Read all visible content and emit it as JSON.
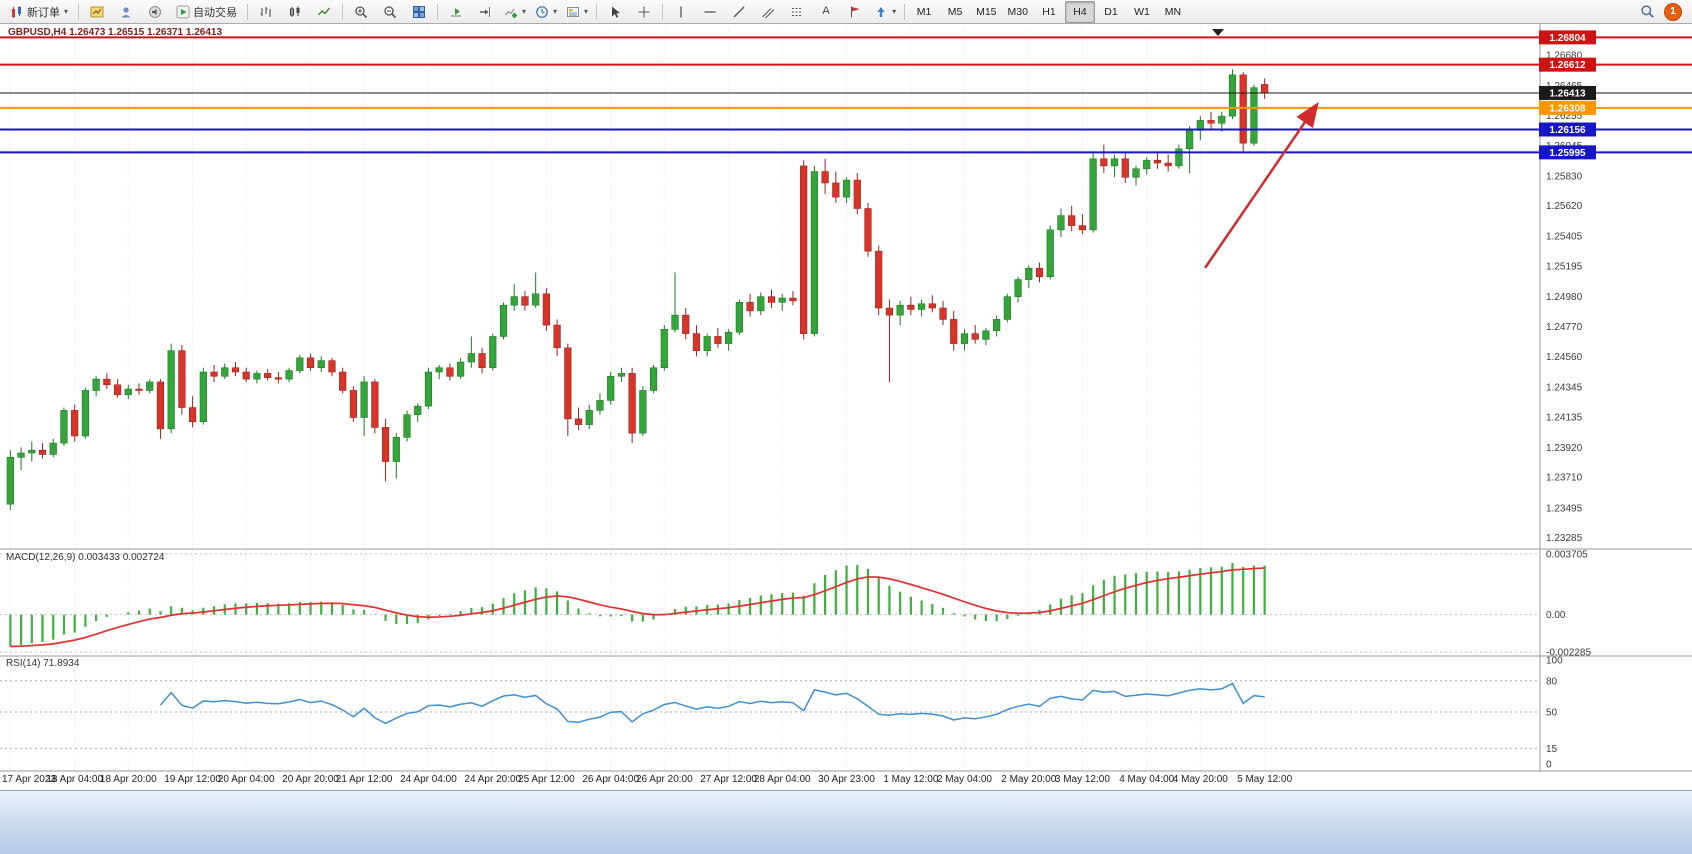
{
  "toolbar": {
    "new_order": "新订单",
    "auto_trading": "自动交易",
    "timeframes": [
      "M1",
      "M5",
      "M15",
      "M30",
      "H1",
      "H4",
      "D1",
      "W1",
      "MN"
    ],
    "active_timeframe": "H4",
    "notification_count": "1",
    "text_tool": "A"
  },
  "chart": {
    "title": "GBPUSD,H4 1.26473 1.26515 1.26371 1.26413",
    "symbol": "GBPUSD",
    "timeframe": "H4",
    "price_axis_labels": [
      "1.26680",
      "1.26465",
      "1.26255",
      "1.26045",
      "1.25830",
      "1.25620",
      "1.25405",
      "1.25195",
      "1.24980",
      "1.24770",
      "1.24560",
      "1.24345",
      "1.24135",
      "1.23920",
      "1.23710",
      "1.23495",
      "1.23285"
    ],
    "hlines": [
      {
        "value": 1.26804,
        "label": "1.26804",
        "color": "#cc1414",
        "width": 2
      },
      {
        "value": 1.26612,
        "label": "1.26612",
        "color": "#cc1414",
        "width": 2
      },
      {
        "value": 1.26413,
        "label": "1.26413",
        "color": "#1a1a1a",
        "width": 1
      },
      {
        "value": 1.26308,
        "label": "1.26308",
        "color": "#ff9500",
        "width": 2
      },
      {
        "value": 1.26156,
        "label": "1.26156",
        "color": "#1616c8",
        "width": 2
      },
      {
        "value": 1.25995,
        "label": "1.25995",
        "color": "#1616c8",
        "width": 2
      }
    ]
  },
  "chart_data": {
    "type": "candlestick",
    "symbol": "GBPUSD",
    "timeframe": "H4",
    "current_ohlc": {
      "open": 1.26473,
      "high": 1.26515,
      "low": 1.26371,
      "close": 1.26413
    },
    "price_range": [
      1.2324,
      1.2687
    ],
    "macd_range": [
      -0.002285,
      0.003705
    ],
    "rsi_range": [
      0,
      100
    ],
    "colors": {
      "up": "#35a53b",
      "down": "#d8352a",
      "up_stroke": "#1c7a24",
      "down_stroke": "#9c231c"
    },
    "time_labels": [
      "17 Apr 2023",
      "18 Apr 04:00",
      "18 Apr 20:00",
      "19 Apr 12:00",
      "20 Apr 04:00",
      "20 Apr 20:00",
      "21 Apr 12:00",
      "24 Apr 04:00",
      "24 Apr 20:00",
      "25 Apr 12:00",
      "26 Apr 04:00",
      "26 Apr 20:00",
      "27 Apr 12:00",
      "28 Apr 04:00",
      "30 Apr 23:00",
      "1 May 12:00",
      "2 May 04:00",
      "2 May 20:00",
      "3 May 12:00",
      "4 May 04:00",
      "4 May 20:00",
      "5 May 12:00"
    ],
    "candles": [
      [
        1.2352,
        1.239,
        1.2348,
        1.2385
      ],
      [
        1.2385,
        1.2392,
        1.2376,
        1.2388
      ],
      [
        1.2388,
        1.2396,
        1.2382,
        1.239
      ],
      [
        1.239,
        1.2395,
        1.2384,
        1.2387
      ],
      [
        1.2387,
        1.2398,
        1.2385,
        1.2395
      ],
      [
        1.2395,
        1.242,
        1.2393,
        1.2418
      ],
      [
        1.2418,
        1.2422,
        1.2396,
        1.24
      ],
      [
        1.24,
        1.2434,
        1.2398,
        1.2432
      ],
      [
        1.2432,
        1.2442,
        1.2428,
        1.244
      ],
      [
        1.244,
        1.2444,
        1.2433,
        1.2436
      ],
      [
        1.2436,
        1.244,
        1.2427,
        1.2429
      ],
      [
        1.2429,
        1.2436,
        1.2426,
        1.2433
      ],
      [
        1.2433,
        1.2437,
        1.2429,
        1.2432
      ],
      [
        1.2432,
        1.244,
        1.243,
        1.2438
      ],
      [
        1.2438,
        1.244,
        1.2398,
        1.2405
      ],
      [
        1.2405,
        1.2465,
        1.2402,
        1.246
      ],
      [
        1.246,
        1.2464,
        1.2415,
        1.242
      ],
      [
        1.242,
        1.2428,
        1.2406,
        1.241
      ],
      [
        1.241,
        1.2448,
        1.2408,
        1.2445
      ],
      [
        1.2445,
        1.245,
        1.2438,
        1.2442
      ],
      [
        1.2442,
        1.2451,
        1.244,
        1.2448
      ],
      [
        1.2448,
        1.2452,
        1.2442,
        1.2445
      ],
      [
        1.2445,
        1.2448,
        1.2438,
        1.244
      ],
      [
        1.244,
        1.2446,
        1.2437,
        1.2444
      ],
      [
        1.2444,
        1.2447,
        1.2439,
        1.2441
      ],
      [
        1.2441,
        1.2445,
        1.2437,
        1.244
      ],
      [
        1.244,
        1.2448,
        1.2438,
        1.2446
      ],
      [
        1.2446,
        1.2457,
        1.2444,
        1.2455
      ],
      [
        1.2455,
        1.2458,
        1.2446,
        1.2448
      ],
      [
        1.2448,
        1.2456,
        1.2445,
        1.2453
      ],
      [
        1.2453,
        1.2455,
        1.2442,
        1.2445
      ],
      [
        1.2445,
        1.2448,
        1.243,
        1.2432
      ],
      [
        1.2432,
        1.2435,
        1.241,
        1.2413
      ],
      [
        1.2413,
        1.2442,
        1.24,
        1.2438
      ],
      [
        1.2438,
        1.244,
        1.2402,
        1.2406
      ],
      [
        1.2406,
        1.2412,
        1.2368,
        1.2382
      ],
      [
        1.2382,
        1.2402,
        1.237,
        1.2399
      ],
      [
        1.2399,
        1.2418,
        1.2396,
        1.2415
      ],
      [
        1.2415,
        1.2423,
        1.241,
        1.2421
      ],
      [
        1.2421,
        1.2448,
        1.2419,
        1.2445
      ],
      [
        1.2445,
        1.245,
        1.244,
        1.2448
      ],
      [
        1.2448,
        1.2451,
        1.2439,
        1.2442
      ],
      [
        1.2442,
        1.2455,
        1.244,
        1.2452
      ],
      [
        1.2452,
        1.247,
        1.2448,
        1.2458
      ],
      [
        1.2458,
        1.2462,
        1.2444,
        1.2448
      ],
      [
        1.2448,
        1.2472,
        1.2446,
        1.247
      ],
      [
        1.247,
        1.2494,
        1.2468,
        1.2492
      ],
      [
        1.2492,
        1.2507,
        1.2488,
        1.2498
      ],
      [
        1.2498,
        1.2502,
        1.2488,
        1.2492
      ],
      [
        1.2492,
        1.2515,
        1.249,
        1.25
      ],
      [
        1.25,
        1.2504,
        1.2474,
        1.2478
      ],
      [
        1.2478,
        1.2482,
        1.2456,
        1.2462
      ],
      [
        1.2462,
        1.2465,
        1.24,
        1.2412
      ],
      [
        1.2412,
        1.242,
        1.2404,
        1.2408
      ],
      [
        1.2408,
        1.2422,
        1.2405,
        1.2418
      ],
      [
        1.2418,
        1.243,
        1.2415,
        1.2425
      ],
      [
        1.2425,
        1.2445,
        1.2422,
        1.2442
      ],
      [
        1.2442,
        1.2448,
        1.2438,
        1.2444
      ],
      [
        1.2444,
        1.2448,
        1.2395,
        1.2402
      ],
      [
        1.2402,
        1.2435,
        1.24,
        1.2432
      ],
      [
        1.2432,
        1.245,
        1.243,
        1.2448
      ],
      [
        1.2448,
        1.2478,
        1.2446,
        1.2475
      ],
      [
        1.2475,
        1.2515,
        1.2473,
        1.2485
      ],
      [
        1.2485,
        1.249,
        1.2468,
        1.2472
      ],
      [
        1.2472,
        1.2478,
        1.2456,
        1.246
      ],
      [
        1.246,
        1.2472,
        1.2456,
        1.247
      ],
      [
        1.247,
        1.2476,
        1.2462,
        1.2465
      ],
      [
        1.2465,
        1.2475,
        1.246,
        1.2473
      ],
      [
        1.2473,
        1.2496,
        1.2471,
        1.2494
      ],
      [
        1.2494,
        1.25,
        1.2484,
        1.2488
      ],
      [
        1.2488,
        1.2501,
        1.2485,
        1.2498
      ],
      [
        1.2498,
        1.2503,
        1.249,
        1.2494
      ],
      [
        1.2494,
        1.25,
        1.2488,
        1.2497
      ],
      [
        1.2497,
        1.2502,
        1.2492,
        1.2495
      ],
      [
        1.259,
        1.2594,
        1.2468,
        1.2472
      ],
      [
        1.2472,
        1.259,
        1.247,
        1.2586
      ],
      [
        1.2586,
        1.2595,
        1.257,
        1.2578
      ],
      [
        1.2578,
        1.2586,
        1.2564,
        1.2568
      ],
      [
        1.2568,
        1.2582,
        1.2564,
        1.258
      ],
      [
        1.258,
        1.2585,
        1.2556,
        1.256
      ],
      [
        1.256,
        1.2564,
        1.2526,
        1.253
      ],
      [
        1.253,
        1.2534,
        1.2485,
        1.249
      ],
      [
        1.249,
        1.2496,
        1.2438,
        1.2485
      ],
      [
        1.2485,
        1.2495,
        1.2478,
        1.2492
      ],
      [
        1.2492,
        1.2498,
        1.2485,
        1.2489
      ],
      [
        1.2489,
        1.2496,
        1.2484,
        1.2493
      ],
      [
        1.2493,
        1.2499,
        1.2487,
        1.249
      ],
      [
        1.249,
        1.2495,
        1.2478,
        1.2482
      ],
      [
        1.2482,
        1.2488,
        1.246,
        1.2465
      ],
      [
        1.2465,
        1.2475,
        1.246,
        1.2472
      ],
      [
        1.2472,
        1.2478,
        1.2465,
        1.2468
      ],
      [
        1.2468,
        1.2476,
        1.2464,
        1.2474
      ],
      [
        1.2474,
        1.2485,
        1.247,
        1.2482
      ],
      [
        1.2482,
        1.25,
        1.248,
        1.2498
      ],
      [
        1.2498,
        1.2512,
        1.2494,
        1.251
      ],
      [
        1.251,
        1.252,
        1.2504,
        1.2518
      ],
      [
        1.2518,
        1.2522,
        1.2508,
        1.2512
      ],
      [
        1.2512,
        1.2548,
        1.251,
        1.2545
      ],
      [
        1.2545,
        1.256,
        1.254,
        1.2555
      ],
      [
        1.2555,
        1.2562,
        1.2544,
        1.2548
      ],
      [
        1.2548,
        1.2556,
        1.2542,
        1.2545
      ],
      [
        1.2545,
        1.26,
        1.2543,
        1.2595
      ],
      [
        1.2595,
        1.2605,
        1.2585,
        1.259
      ],
      [
        1.259,
        1.2598,
        1.2582,
        1.2595
      ],
      [
        1.2595,
        1.26,
        1.2578,
        1.2582
      ],
      [
        1.2582,
        1.259,
        1.2576,
        1.2588
      ],
      [
        1.2588,
        1.2596,
        1.2584,
        1.2594
      ],
      [
        1.2594,
        1.26,
        1.2588,
        1.2592
      ],
      [
        1.2592,
        1.2598,
        1.2586,
        1.259
      ],
      [
        1.259,
        1.2605,
        1.2588,
        1.2602
      ],
      [
        1.2602,
        1.2618,
        1.2585,
        1.2615
      ],
      [
        1.2615,
        1.2625,
        1.2608,
        1.2622
      ],
      [
        1.2622,
        1.2628,
        1.2615,
        1.262
      ],
      [
        1.262,
        1.2628,
        1.2614,
        1.2625
      ],
      [
        1.2625,
        1.2658,
        1.2623,
        1.2654
      ],
      [
        1.2654,
        1.2656,
        1.26,
        1.2606
      ],
      [
        1.2606,
        1.2647,
        1.2604,
        1.2645
      ],
      [
        1.26473,
        1.26515,
        1.26371,
        1.26413
      ]
    ]
  },
  "macd": {
    "label": "MACD(12,26,9) 0.003433 0.002724",
    "fast": 12,
    "slow": 26,
    "signal_period": 9,
    "value": 0.003433,
    "signal": 0.002724,
    "axis": [
      {
        "label": "0.003705",
        "value": 0.003705
      },
      {
        "label": "0.00",
        "value": 0
      },
      {
        "label": "-0.002285",
        "value": -0.002285
      }
    ],
    "bar_color": "#3cb13c",
    "signal_color": "#e03030"
  },
  "rsi": {
    "label": "RSI(14) 71.8934",
    "period": 14,
    "value": 71.8934,
    "axis": [
      {
        "label": "100",
        "value": 100
      },
      {
        "label": "80",
        "value": 80
      },
      {
        "label": "50",
        "value": 50
      },
      {
        "label": "15",
        "value": 15
      },
      {
        "label": "0",
        "value": 0
      }
    ],
    "levels": [
      80,
      50,
      15
    ],
    "line_color": "#3f8fd2"
  },
  "annotations": {
    "arrow_color": "#d02c2c"
  }
}
